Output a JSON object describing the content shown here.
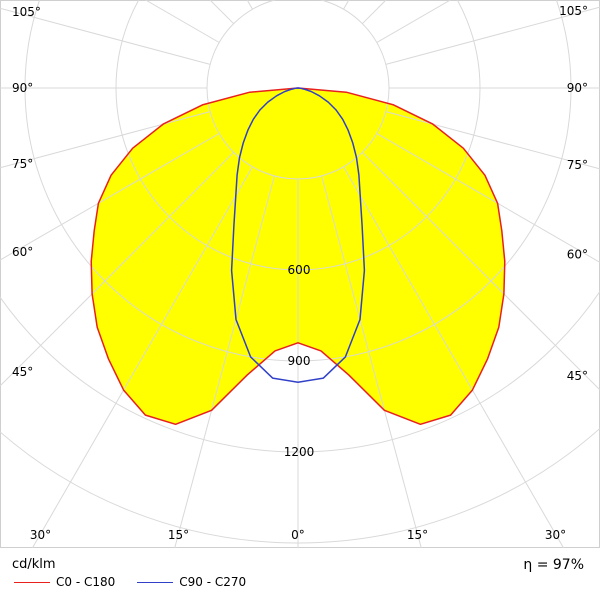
{
  "chart_data": {
    "type": "polar",
    "title": "",
    "unit": "cd/klm",
    "efficiency_label": "η = 97%",
    "radial_max": 1500,
    "radial_ticks": [
      300,
      600,
      900,
      1200,
      1500
    ],
    "radial_tick_labels": [
      "600",
      "900",
      "1200"
    ],
    "angle_ticks": [
      0,
      15,
      30,
      45,
      60,
      75,
      90,
      105
    ],
    "angle_labels": {
      "bottom": [
        "30°",
        "15°",
        "0°",
        "15°",
        "30°"
      ],
      "left": [
        "105°",
        "90°",
        "75°",
        "60°",
        "45°"
      ],
      "right": [
        "105°",
        "90°",
        "75°",
        "60°",
        "45°"
      ]
    },
    "series": [
      {
        "name": "C0 - C180",
        "color": "#e8201e",
        "fill": "#ffff00",
        "angles": [
          0,
          5,
          10,
          15,
          20,
          25,
          30,
          35,
          40,
          45,
          50,
          55,
          60,
          65,
          70,
          75,
          80,
          85,
          90
        ],
        "values": [
          840,
          870,
          960,
          1100,
          1180,
          1190,
          1150,
          1090,
          1030,
          960,
          890,
          820,
          760,
          680,
          580,
          460,
          320,
          160,
          0
        ]
      },
      {
        "name": "C90 - C270",
        "color": "#3040c8",
        "fill": "none",
        "angles": [
          0,
          5,
          10,
          15,
          20,
          25,
          30,
          35,
          40,
          45,
          50,
          55,
          60,
          65,
          70,
          75,
          80,
          85,
          90
        ],
        "values": [
          970,
          960,
          900,
          790,
          640,
          500,
          410,
          350,
          300,
          255,
          215,
          180,
          145,
          110,
          75,
          45,
          20,
          8,
          0
        ]
      }
    ]
  }
}
